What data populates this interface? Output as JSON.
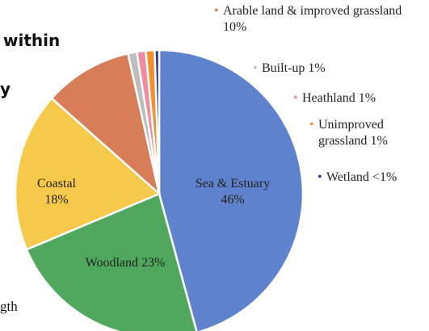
{
  "chart_data": {
    "type": "pie",
    "text_fragments": [
      "within",
      "y",
      "gth"
    ],
    "categories": [
      "Sea & Estuary",
      "Woodland",
      "Coastal",
      "Arable land & improved grassland",
      "Built-up",
      "Heathland",
      "Unimproved grassland",
      "Wetland"
    ],
    "values": [
      46,
      23,
      18,
      10,
      1,
      1,
      1,
      0.5
    ],
    "value_labels": [
      "46%",
      "23%",
      "18%",
      "10%",
      "1%",
      "1%",
      "1%",
      "<1%"
    ],
    "colors": [
      "#5f82cc",
      "#4fa85e",
      "#f6c94a",
      "#d77d57",
      "#bdbdbd",
      "#f28aa0",
      "#f29030",
      "#1f3a93"
    ]
  }
}
